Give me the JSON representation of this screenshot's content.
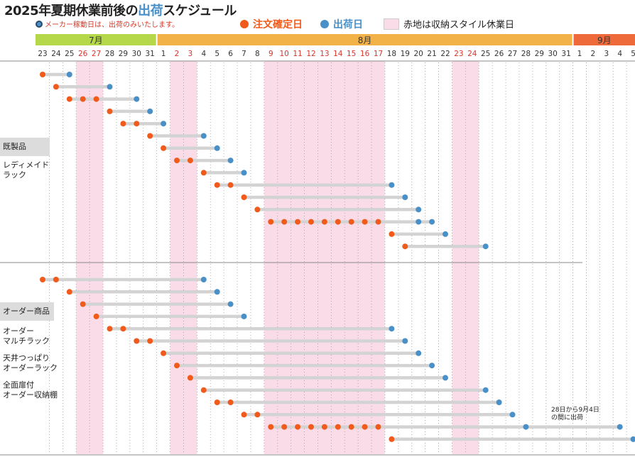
{
  "title": {
    "prefix": "2025年夏期休業前後の",
    "highlight": "出荷",
    "suffix": "スケジュール"
  },
  "note": "メーカー稼動日は、出荷のみいたします。",
  "legend": {
    "order": "注文確定日",
    "ship": "出荷日",
    "holiday": "赤地は収納スタイル休業日"
  },
  "colors": {
    "order": "#f05a1a",
    "ship": "#4a90c8",
    "holiday": "#f9dce8",
    "bar": "#d3d3d3",
    "july": "#b5d84a",
    "august": "#f2b247",
    "september": "#ee6a3a"
  },
  "months": [
    {
      "label": "7月",
      "start": 0,
      "end": 8
    },
    {
      "label": "8月",
      "start": 9,
      "end": 39
    },
    {
      "label": "9月",
      "start": 40,
      "end": 44
    }
  ],
  "categories": {
    "readymade_header": "既製品",
    "readymade_sub": "レディメイド\nラック",
    "order_header": "オーダー商品",
    "order_sub1": "オーダー\nマルチラック",
    "order_sub2": "天井つっぱり\nオーダーラック",
    "order_sub3": "全面扉付\nオーダー収納棚"
  },
  "annotation": "28日から9月4日\nの間に出荷",
  "chart_data": {
    "type": "timeline",
    "days": [
      "23",
      "24",
      "25",
      "26",
      "27",
      "28",
      "29",
      "30",
      "31",
      "1",
      "2",
      "3",
      "4",
      "5",
      "6",
      "7",
      "8",
      "9",
      "10",
      "11",
      "12",
      "13",
      "14",
      "15",
      "16",
      "17",
      "18",
      "19",
      "20",
      "21",
      "22",
      "23",
      "24",
      "25",
      "26",
      "27",
      "28",
      "29",
      "30",
      "31",
      "1",
      "2",
      "3",
      "4",
      "5"
    ],
    "red_days": [
      3,
      4,
      10,
      11,
      17,
      18,
      19,
      20,
      21,
      22,
      23,
      24,
      25,
      31,
      32
    ],
    "holiday_ranges": [
      [
        3,
        4
      ],
      [
        10,
        11
      ],
      [
        17,
        25
      ],
      [
        31,
        32
      ]
    ],
    "rows_readymade": [
      {
        "orders": [
          0
        ],
        "ship": [
          2
        ]
      },
      {
        "orders": [
          1
        ],
        "ship": [
          5
        ]
      },
      {
        "orders": [
          2,
          3,
          4
        ],
        "ship": [
          7
        ]
      },
      {
        "orders": [
          5
        ],
        "ship": [
          8
        ]
      },
      {
        "orders": [
          6,
          7
        ],
        "ship": [
          9
        ]
      },
      {
        "orders": [
          8
        ],
        "ship": [
          12
        ]
      },
      {
        "orders": [
          9
        ],
        "ship": [
          13
        ]
      },
      {
        "orders": [
          10,
          11
        ],
        "ship": [
          14
        ]
      },
      {
        "orders": [
          12
        ],
        "ship": [
          15
        ]
      },
      {
        "orders": [
          13,
          14
        ],
        "ship": [
          26
        ]
      },
      {
        "orders": [
          15
        ],
        "ship": [
          27
        ]
      },
      {
        "orders": [
          16
        ],
        "ship": [
          28
        ]
      },
      {
        "orders": [
          17,
          18,
          19,
          20,
          21,
          22,
          23,
          24,
          25
        ],
        "ship": [
          28,
          29
        ]
      },
      {
        "orders": [
          26
        ],
        "ship": [
          30
        ]
      },
      {
        "orders": [
          27
        ],
        "ship": [
          33
        ]
      }
    ],
    "rows_order": [
      {
        "orders": [
          0,
          1
        ],
        "ship": [
          12
        ]
      },
      {
        "orders": [
          2
        ],
        "ship": [
          13
        ]
      },
      {
        "orders": [
          3
        ],
        "ship": [
          14
        ]
      },
      {
        "orders": [
          4
        ],
        "ship": [
          15
        ]
      },
      {
        "orders": [
          5,
          6
        ],
        "ship": [
          26
        ]
      },
      {
        "orders": [
          7,
          8
        ],
        "ship": [
          27
        ]
      },
      {
        "orders": [
          9
        ],
        "ship": [
          28
        ]
      },
      {
        "orders": [
          10
        ],
        "ship": [
          29
        ]
      },
      {
        "orders": [
          11
        ],
        "ship": [
          30
        ]
      },
      {
        "orders": [
          12
        ],
        "ship": [
          33
        ]
      },
      {
        "orders": [
          13,
          14
        ],
        "ship": [
          34
        ]
      },
      {
        "orders": [
          15,
          16
        ],
        "ship": [
          35
        ]
      },
      {
        "orders": [
          17,
          18,
          19,
          20,
          21,
          22,
          23,
          24,
          25
        ],
        "ship": [
          36,
          43
        ]
      },
      {
        "orders": [
          26
        ],
        "ship": [
          44
        ]
      }
    ]
  }
}
